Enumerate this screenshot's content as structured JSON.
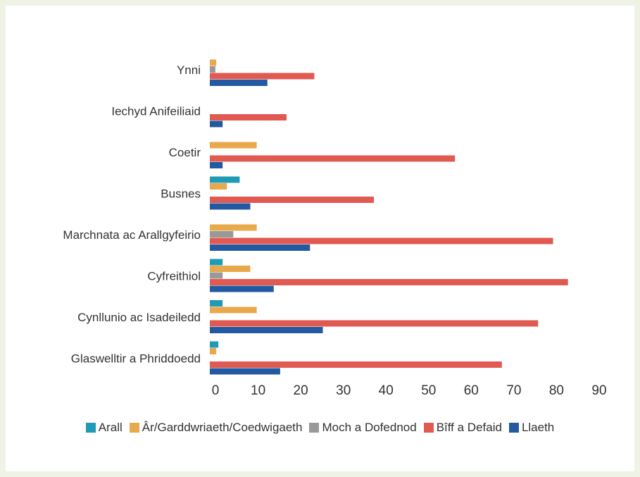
{
  "chart_data": {
    "type": "bar",
    "orientation": "horizontal",
    "title": "",
    "xlabel": "",
    "ylabel": "",
    "xlim": [
      0,
      90
    ],
    "xticks": [
      0,
      10,
      20,
      30,
      40,
      50,
      60,
      70,
      80,
      90
    ],
    "grid": false,
    "legend_position": "bottom",
    "categories": [
      "Ynni",
      "Iechyd Anifeiliaid",
      "Coetir",
      "Busnes",
      "Marchnata ac Arallgyfeirio",
      "Cyfreithiol",
      "Cynllunio ac Isadeiledd",
      "Glaswelltir a Phriddoedd"
    ],
    "series": [
      {
        "name": "Arall",
        "color": "#1f9bb5",
        "values": [
          0,
          0,
          0,
          7,
          0,
          3,
          3,
          2
        ]
      },
      {
        "name": "Âr/Garddwriaeth/Coedwigaeth",
        "color": "#e8a84c",
        "values": [
          1.5,
          0,
          11,
          4,
          11,
          9.5,
          11,
          1.5
        ]
      },
      {
        "name": "Moch a Dofednod",
        "color": "#999999",
        "values": [
          1.3,
          0,
          0,
          0,
          5.5,
          3,
          0,
          0
        ]
      },
      {
        "name": "Bîff a Defaid",
        "color": "#e05a52",
        "values": [
          24.5,
          18,
          57.5,
          38.5,
          80.5,
          84,
          77,
          68.5
        ]
      },
      {
        "name": "Llaeth",
        "color": "#2359a0",
        "values": [
          13.5,
          3,
          3,
          9.5,
          23.5,
          15,
          26.5,
          16.5
        ]
      }
    ]
  }
}
